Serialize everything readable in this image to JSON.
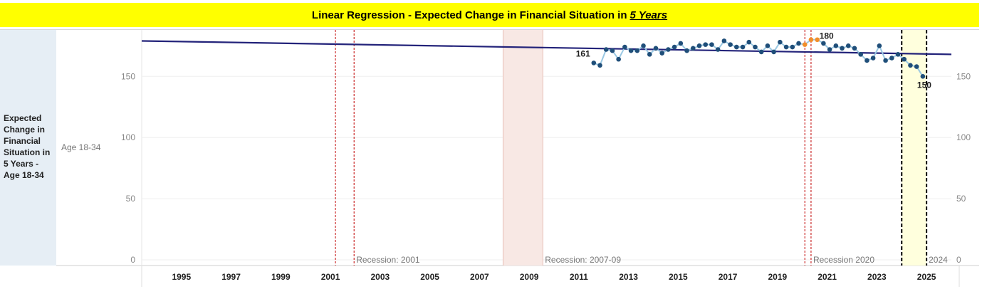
{
  "title": {
    "main": "Linear Regression - Expected Change in Financial Situation in",
    "emphasis": "5 Years"
  },
  "row_header": {
    "label": "Expected Change in Financial Situation in 5 Years - Age 18-34",
    "sub_label": "Age 18-34"
  },
  "colors": {
    "title_bg": "#ffff00",
    "line": "#9ac8e3",
    "point": "#1f4e79",
    "highlight_point": "#f28e2b",
    "trend": "#23237a",
    "recession_line": "#c00000",
    "recession_fill": "#f8e8e4",
    "current_fill": "#ffffdd"
  },
  "chart_data": {
    "type": "line",
    "xlabel": "",
    "ylabel": "",
    "xlim": [
      1993.4,
      2026.0
    ],
    "ylim": [
      0,
      188
    ],
    "y_ticks": [
      0,
      50,
      100,
      150
    ],
    "x_ticks": [
      1995,
      1997,
      1999,
      2001,
      2003,
      2005,
      2007,
      2009,
      2011,
      2013,
      2015,
      2017,
      2019,
      2021,
      2023,
      2025
    ],
    "grid": "horizontal",
    "series": [
      {
        "x": [
          2011.6,
          2011.85,
          2012.1,
          2012.35,
          2012.6,
          2012.85,
          2013.1,
          2013.35,
          2013.6,
          2013.85,
          2014.1,
          2014.35,
          2014.6,
          2014.85,
          2015.1,
          2015.35,
          2015.6,
          2015.85,
          2016.1,
          2016.35,
          2016.6,
          2016.85,
          2017.1,
          2017.35,
          2017.6,
          2017.85,
          2018.1,
          2018.35,
          2018.6,
          2018.85,
          2019.1,
          2019.35,
          2019.6,
          2019.85,
          2020.1,
          2020.35,
          2020.6,
          2020.85,
          2021.1,
          2021.35,
          2021.6,
          2021.85,
          2022.1,
          2022.35,
          2022.6,
          2022.85,
          2023.1,
          2023.35,
          2023.6,
          2023.85,
          2024.1,
          2024.35,
          2024.6,
          2024.85
        ],
        "values": [
          161,
          159,
          172,
          171,
          164,
          174,
          171,
          171,
          175,
          168,
          173,
          169,
          172,
          174,
          177,
          171,
          173,
          175,
          176,
          176,
          172,
          179,
          176,
          174,
          174,
          178,
          174,
          170,
          175,
          170,
          178,
          174,
          174,
          177,
          176,
          180,
          180,
          177,
          172,
          175,
          173,
          175,
          173,
          168,
          163,
          165,
          175,
          163,
          165,
          168,
          164,
          159,
          158,
          150
        ]
      }
    ],
    "highlight_points": [
      {
        "x": 2020.1,
        "y": 176
      },
      {
        "x": 2020.35,
        "y": 180
      },
      {
        "x": 2020.6,
        "y": 180
      }
    ],
    "trend_line": {
      "x": [
        1993.4,
        2026.0
      ],
      "y": [
        179,
        168
      ]
    },
    "labels": [
      {
        "x": 2011.6,
        "y": 161,
        "text": "161",
        "pos": "left-above"
      },
      {
        "x": 2020.6,
        "y": 180,
        "text": "180",
        "pos": "right"
      },
      {
        "x": 2024.85,
        "y": 150,
        "text": "150",
        "pos": "below"
      }
    ],
    "bands": [
      {
        "x0": 2001.2,
        "x1": 2001.95,
        "style": "dashed",
        "label": "Recession: 2001"
      },
      {
        "x0": 2007.95,
        "x1": 2009.55,
        "style": "filled",
        "label": "Recession: 2007-09"
      },
      {
        "x0": 2020.1,
        "x1": 2020.35,
        "style": "dashed",
        "label": "Recession 2020"
      },
      {
        "x0": 2024.0,
        "x1": 2025.0,
        "style": "current",
        "label": "2024"
      }
    ]
  }
}
